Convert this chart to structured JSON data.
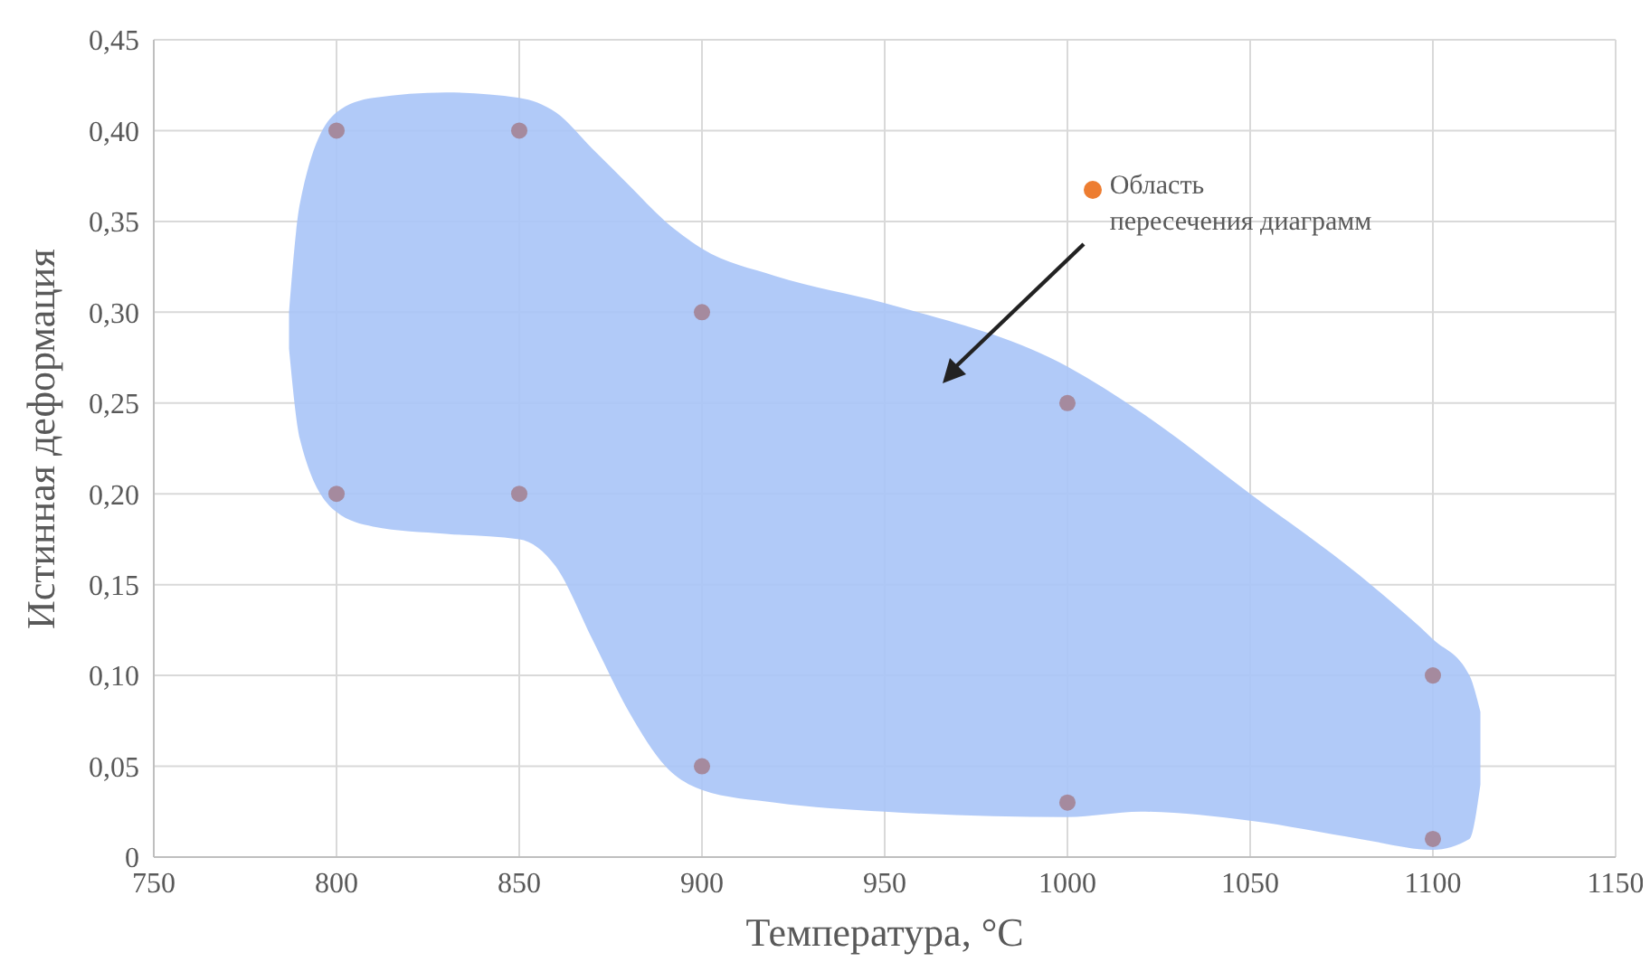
{
  "chart_data": {
    "type": "scatter",
    "xlabel": "Температура, °C",
    "ylabel": "Истинная деформация",
    "xlim": [
      750,
      1150
    ],
    "xticks": [
      750,
      800,
      850,
      900,
      950,
      1000,
      1050,
      1100,
      1150
    ],
    "ylim": [
      0,
      0.45
    ],
    "yticks": [
      {
        "value": 0,
        "label": "0"
      },
      {
        "value": 0.05,
        "label": "0,05"
      },
      {
        "value": 0.1,
        "label": "0,10"
      },
      {
        "value": 0.15,
        "label": "0,15"
      },
      {
        "value": 0.2,
        "label": "0,20"
      },
      {
        "value": 0.25,
        "label": "0,25"
      },
      {
        "value": 0.3,
        "label": "0,30"
      },
      {
        "value": 0.35,
        "label": "0,35"
      },
      {
        "value": 0.4,
        "label": "0,40"
      },
      {
        "value": 0.45,
        "label": "0,45"
      }
    ],
    "grid": true,
    "series": [
      {
        "type": "line",
        "color": "#a9c4f7",
        "x": [
          787,
          790,
          800,
          810,
          830,
          850,
          860,
          870,
          880,
          890,
          900,
          920,
          950,
          1000,
          1020,
          1050,
          1080,
          1100,
          1110,
          1113
        ],
        "values": [
          null,
          null,
          null,
          null,
          null,
          null,
          null,
          null,
          null,
          null,
          null,
          null,
          null,
          null,
          null,
          null,
          null,
          null,
          null,
          null
        ],
        "lower": [
          0.28,
          0.23,
          0.19,
          0.182,
          0.178,
          0.175,
          0.16,
          0.12,
          0.08,
          0.05,
          0.037,
          0.03,
          0.025,
          0.022,
          0.025,
          0.02,
          0.01,
          0.004,
          0.01,
          0.04
        ],
        "upper": [
          0.3,
          0.36,
          0.41,
          0.418,
          0.421,
          0.418,
          0.41,
          0.39,
          0.37,
          0.35,
          0.335,
          0.32,
          0.305,
          0.27,
          0.245,
          0.2,
          0.155,
          0.12,
          0.1,
          0.08
        ]
      },
      {
        "marker": "circle",
        "color": "#a58a9e",
        "x": [
          800,
          850,
          800,
          850,
          900,
          1000,
          900,
          1000,
          1100,
          1100
        ],
        "values": [
          0.4,
          0.4,
          0.2,
          0.2,
          0.3,
          0.25,
          0.05,
          0.03,
          0.1,
          0.01
        ]
      }
    ],
    "annotations": [
      "Область\nпересечения диаграмм"
    ]
  }
}
